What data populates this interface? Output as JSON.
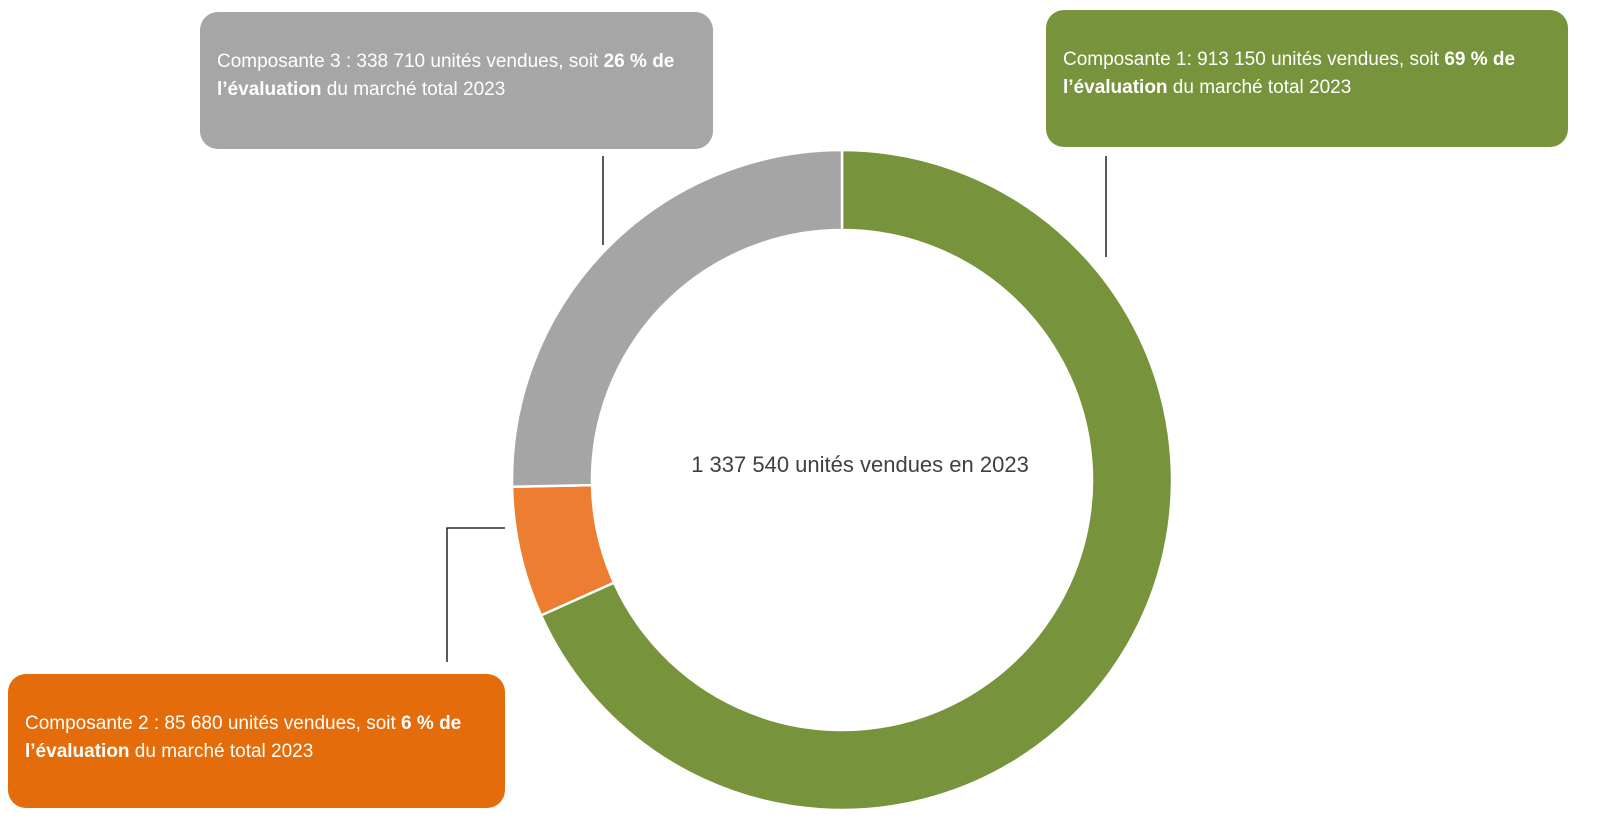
{
  "chart_data": {
    "type": "donut",
    "center_text": "1 337 540 unités vendues en 2023",
    "values": [
      913150,
      85680,
      338710
    ],
    "value_labels": [
      "913 150",
      "85 680",
      "338 710"
    ],
    "colors": [
      "#77933c",
      "#ed7d31",
      "#a5a5a5"
    ],
    "box_colors": [
      "#77933c",
      "#e46c0a",
      "#a6a6a6"
    ],
    "annotations": [
      {
        "prefix": "Composante 1: ",
        "middle": " unités vendues, soit ",
        "bold": "69 % de l’évaluation",
        "suffix": " du marché total 2023"
      },
      {
        "prefix": "Composante 2 : ",
        "middle": " unités vendues, soit ",
        "bold": "6 % de l’évaluation",
        "suffix": " du marché total 2023"
      },
      {
        "prefix": "Composante 3 : ",
        "middle": " unités vendues, soit ",
        "bold": "26 % de l’évaluation",
        "suffix": " du marché total 2023"
      }
    ]
  }
}
